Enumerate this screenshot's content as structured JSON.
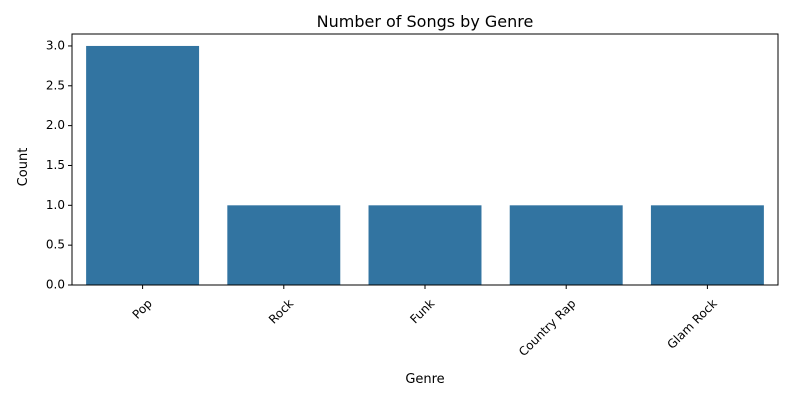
{
  "chart_data": {
    "type": "bar",
    "title": "Number of Songs by Genre",
    "xlabel": "Genre",
    "ylabel": "Count",
    "categories": [
      "Pop",
      "Rock",
      "Funk",
      "Country Rap",
      "Glam Rock"
    ],
    "values": [
      3,
      1,
      1,
      1,
      1
    ],
    "ylim": [
      0,
      3.15
    ],
    "yticks": [
      "0.0",
      "0.5",
      "1.0",
      "1.5",
      "2.0",
      "2.5",
      "3.0"
    ],
    "grid": false,
    "bar_color": "#3274a1"
  }
}
